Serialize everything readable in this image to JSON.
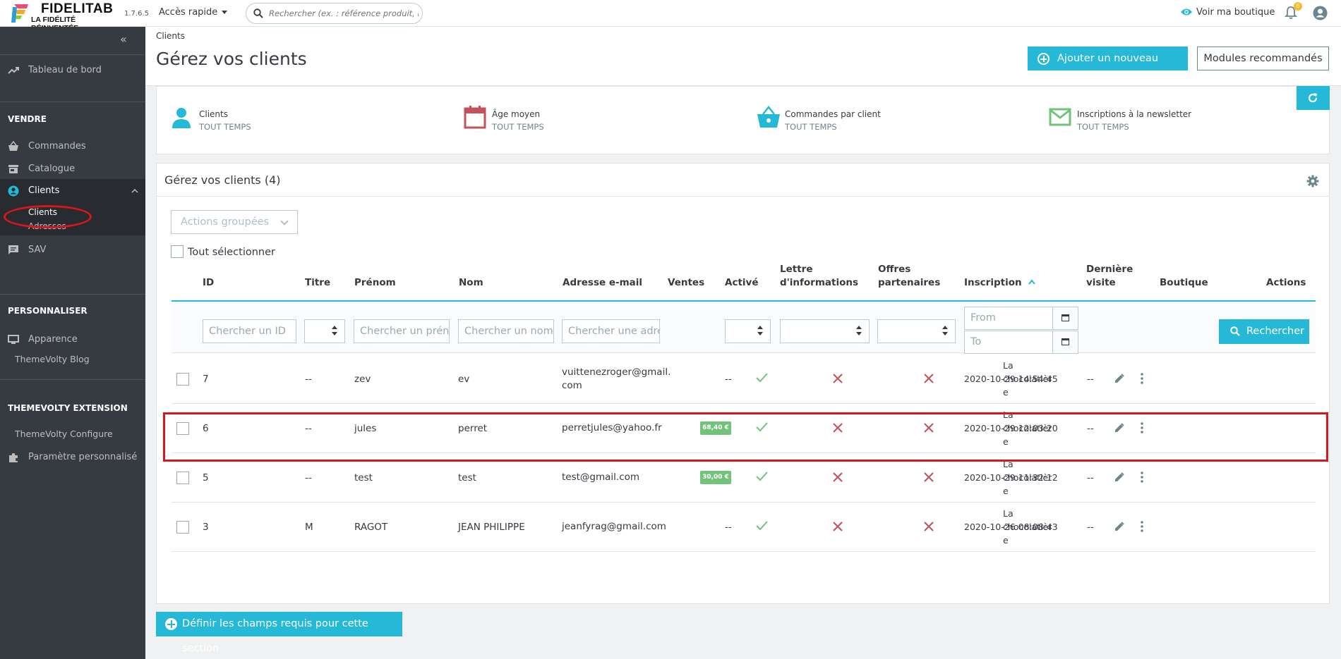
{
  "app": {
    "logo_title": "FIDELITAB",
    "logo_subtitle": "LA FIDÉLITÉ RÉINVENTÉE",
    "version": "1.7.6.5",
    "quick_access": "Accès rapide",
    "search_placeholder": "Rechercher (ex. : référence produit, nom",
    "view_shop": "Voir ma boutique",
    "notifications_count": "6"
  },
  "sidebar": {
    "dashboard": "Tableau de bord",
    "section_sell": "VENDRE",
    "orders": "Commandes",
    "catalog": "Catalogue",
    "customers": "Clients",
    "sub_customers": "Clients",
    "sub_addresses": "Adresses",
    "sav": "SAV",
    "section_customize": "PERSONNALISER",
    "appearance": "Apparence",
    "themevolty_blog": "ThemeVolty Blog",
    "section_extension": "THEMEVOLTY EXTENSION",
    "themevolty_configure": "ThemeVolty Configure",
    "custom_settings": "Paramètre personnalisé"
  },
  "header": {
    "breadcrumb": "Clients",
    "title": "Gérez vos clients",
    "add_button": "Ajouter un nouveau client",
    "modules_button": "Modules recommandés"
  },
  "kpis": [
    {
      "label": "Clients",
      "sub": "TOUT TEMPS",
      "icon": "user-icon",
      "color": "#25b9d7"
    },
    {
      "label": "Âge moyen",
      "sub": "TOUT TEMPS",
      "icon": "calendar-icon",
      "color": "#c3525c"
    },
    {
      "label": "Commandes par client",
      "sub": "TOUT TEMPS",
      "icon": "basket-icon",
      "color": "#25b9d7"
    },
    {
      "label": "Inscriptions à la newsletter",
      "sub": "TOUT TEMPS",
      "icon": "envelope-icon",
      "color": "#72c279"
    }
  ],
  "panel": {
    "title": "Gérez vos clients (4)",
    "bulk_actions": "Actions groupées",
    "select_all": "Tout sélectionner",
    "search_button": "Rechercher"
  },
  "columns": {
    "id": "ID",
    "title": "Titre",
    "firstname": "Prénom",
    "lastname": "Nom",
    "email": "Adresse e-mail",
    "sales": "Ventes",
    "active": "Activé",
    "newsletter": "Lettre d'informations",
    "optin": "Offres partenaires",
    "registration": "Inscription",
    "last_visit": "Dernière visite",
    "shop": "Boutique",
    "actions": "Actions"
  },
  "filters": {
    "id_placeholder": "Chercher un ID",
    "firstname_placeholder": "Chercher un prénom",
    "lastname_placeholder": "Chercher un nom",
    "email_placeholder": "Chercher une adresse e-mail",
    "date_from": "From",
    "date_to": "To"
  },
  "rows": [
    {
      "id": "7",
      "title": "--",
      "firstname": "zev",
      "lastname": "ev",
      "email_l1": "vuittenezroger@gmail.",
      "email_l2": "com",
      "sales": "--",
      "sales_badge": "",
      "active": true,
      "newsletter": false,
      "optin": false,
      "date": "2020-10-29 14:54:45",
      "last_visit": "--",
      "shop_l1": "La",
      "shop_l2": "chocolatièr",
      "shop_l3": "e",
      "highlighted": false
    },
    {
      "id": "6",
      "title": "--",
      "firstname": "jules",
      "lastname": "perret",
      "email_l1": "perretjules@yahoo.fr",
      "email_l2": "",
      "sales": "",
      "sales_badge": "68,40 €",
      "active": true,
      "newsletter": false,
      "optin": false,
      "date": "2020-10-29 12:03:20",
      "last_visit": "--",
      "shop_l1": "La",
      "shop_l2": "chocolatièr",
      "shop_l3": "e",
      "highlighted": true
    },
    {
      "id": "5",
      "title": "--",
      "firstname": "test",
      "lastname": "test",
      "email_l1": "test@gmail.com",
      "email_l2": "",
      "sales": "",
      "sales_badge": "30,00 €",
      "active": true,
      "newsletter": false,
      "optin": false,
      "date": "2020-10-29 11:32:12",
      "last_visit": "--",
      "shop_l1": "La",
      "shop_l2": "chocolatièr",
      "shop_l3": "e",
      "highlighted": false
    },
    {
      "id": "3",
      "title": "M",
      "firstname": "RAGOT",
      "lastname": "JEAN PHILIPPE",
      "email_l1": "jeanfyrag@gmail.com",
      "email_l2": "",
      "sales": "--",
      "sales_badge": "",
      "active": true,
      "newsletter": false,
      "optin": false,
      "date": "2020-10-26 08:08:43",
      "last_visit": "--",
      "shop_l1": "La",
      "shop_l2": "chocolatièr",
      "shop_l3": "e",
      "highlighted": false
    }
  ],
  "footer": {
    "required_fields_button": "Définir les champs requis pour cette section"
  },
  "colors": {
    "accent": "#25b9d7",
    "sidebar": "#363a41",
    "success": "#72c279",
    "danger": "#c3525c",
    "annotation": "#d7161d"
  }
}
